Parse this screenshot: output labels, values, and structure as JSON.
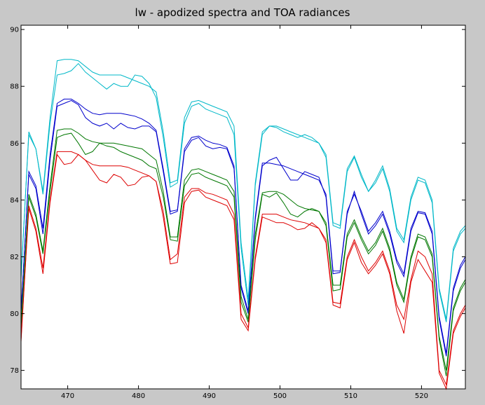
{
  "chart_data": {
    "type": "line",
    "title": "lw - apodized spectra and TOA radiances",
    "xlabel": "",
    "ylabel": "",
    "xlim": [
      463.4,
      526.2
    ],
    "ylim": [
      77.35,
      90.15
    ],
    "xticks": [
      470,
      480,
      490,
      500,
      510,
      520
    ],
    "yticks": [
      78,
      80,
      82,
      84,
      86,
      88,
      90
    ],
    "grid": false,
    "legend": "none",
    "x": [
      463.4,
      464.5,
      465.5,
      466.5,
      467.5,
      468.5,
      469.5,
      470.5,
      471.5,
      472.5,
      473.5,
      474.5,
      475.5,
      476.5,
      477.5,
      478.5,
      479.5,
      480.5,
      481.5,
      482.5,
      483.5,
      484.5,
      485.5,
      486.5,
      487.5,
      488.5,
      489.5,
      490.5,
      491.5,
      492.5,
      493.5,
      494.5,
      495.5,
      496.5,
      497.5,
      498.5,
      499.5,
      500.5,
      501.5,
      502.5,
      503.5,
      504.5,
      505.5,
      506.5,
      507.5,
      508.5,
      509.5,
      510.5,
      511.5,
      512.5,
      513.5,
      514.5,
      515.5,
      516.5,
      517.5,
      518.5,
      519.5,
      520.5,
      521.5,
      522.5,
      523.5,
      524.5,
      525.5,
      526.2
    ],
    "series": [
      {
        "color": "#00b8c8",
        "values": [
          81.2,
          86.4,
          85.8,
          84.3,
          86.9,
          88.9,
          88.95,
          88.95,
          88.9,
          88.7,
          88.5,
          88.4,
          88.4,
          88.4,
          88.4,
          88.3,
          88.2,
          88.1,
          88.0,
          87.8,
          86.4,
          84.6,
          84.7,
          86.9,
          87.45,
          87.5,
          87.4,
          87.3,
          87.2,
          87.1,
          86.6,
          82.5,
          80.5,
          84.6,
          86.4,
          86.6,
          86.6,
          86.5,
          86.4,
          86.3,
          86.2,
          86.1,
          86.0,
          85.6,
          83.2,
          83.1,
          85.1,
          85.55,
          84.9,
          84.3,
          84.7,
          85.2,
          84.4,
          83.0,
          82.6,
          84.1,
          84.8,
          84.7,
          84.0,
          80.9,
          79.8,
          82.3,
          82.9,
          83.1
        ]
      },
      {
        "color": "#00b8c8",
        "values": [
          81.3,
          86.3,
          85.8,
          84.2,
          86.7,
          88.4,
          88.45,
          88.55,
          88.8,
          88.5,
          88.3,
          88.1,
          87.9,
          88.1,
          88.0,
          88.0,
          88.4,
          88.35,
          88.1,
          87.6,
          86.2,
          84.45,
          84.6,
          86.7,
          87.3,
          87.4,
          87.2,
          87.1,
          87.0,
          86.9,
          86.3,
          82.3,
          80.3,
          84.5,
          86.3,
          86.6,
          86.55,
          86.4,
          86.3,
          86.2,
          86.3,
          86.2,
          86.0,
          85.5,
          83.1,
          83.0,
          85.0,
          85.5,
          84.8,
          84.3,
          84.6,
          85.1,
          84.3,
          82.9,
          82.5,
          84.0,
          84.7,
          84.6,
          83.9,
          80.8,
          79.7,
          82.2,
          82.8,
          83.0
        ]
      },
      {
        "color": "#0000cc",
        "values": [
          80.0,
          85.0,
          84.5,
          83.0,
          85.6,
          87.4,
          87.55,
          87.55,
          87.4,
          87.2,
          87.05,
          87.0,
          87.05,
          87.05,
          87.05,
          87.0,
          86.95,
          86.85,
          86.7,
          86.45,
          85.1,
          83.6,
          83.65,
          85.8,
          86.2,
          86.25,
          86.1,
          86.0,
          85.95,
          85.85,
          85.2,
          81.0,
          80.1,
          83.4,
          85.3,
          85.3,
          85.25,
          85.2,
          85.1,
          85.0,
          84.9,
          84.8,
          84.7,
          84.2,
          81.5,
          81.5,
          83.6,
          84.2,
          83.6,
          82.9,
          83.2,
          83.6,
          82.9,
          81.9,
          81.4,
          83.0,
          83.6,
          83.55,
          82.9,
          79.9,
          78.6,
          80.9,
          81.7,
          82.0
        ]
      },
      {
        "color": "#0000cc",
        "values": [
          80.1,
          84.9,
          84.4,
          82.8,
          85.4,
          87.3,
          87.4,
          87.5,
          87.35,
          86.9,
          86.7,
          86.6,
          86.7,
          86.5,
          86.7,
          86.55,
          86.5,
          86.6,
          86.6,
          86.4,
          85.0,
          83.5,
          83.6,
          85.7,
          86.1,
          86.2,
          85.9,
          85.8,
          85.85,
          85.8,
          85.1,
          80.9,
          80.0,
          83.3,
          85.2,
          85.4,
          85.5,
          85.1,
          84.7,
          84.7,
          85.0,
          84.9,
          84.8,
          84.1,
          81.4,
          81.45,
          83.5,
          84.3,
          83.5,
          82.8,
          83.1,
          83.5,
          82.8,
          81.8,
          81.3,
          82.9,
          83.55,
          83.5,
          82.8,
          79.8,
          78.5,
          80.8,
          81.6,
          81.9
        ]
      },
      {
        "color": "#007700",
        "values": [
          79.6,
          84.2,
          83.5,
          82.2,
          84.5,
          86.45,
          86.5,
          86.5,
          86.35,
          86.15,
          86.05,
          86.0,
          86.0,
          86.0,
          85.95,
          85.9,
          85.85,
          85.8,
          85.6,
          85.4,
          84.3,
          82.7,
          82.7,
          84.7,
          85.05,
          85.1,
          85.0,
          84.9,
          84.8,
          84.7,
          84.3,
          80.6,
          79.8,
          82.8,
          84.25,
          84.3,
          84.3,
          84.2,
          84.0,
          83.8,
          83.7,
          83.65,
          83.6,
          83.2,
          81.0,
          81.0,
          82.8,
          83.3,
          82.7,
          82.2,
          82.5,
          83.0,
          82.3,
          81.1,
          80.5,
          82.0,
          82.8,
          82.7,
          82.1,
          79.2,
          78.0,
          80.2,
          80.9,
          81.2
        ]
      },
      {
        "color": "#007700",
        "values": [
          79.5,
          84.1,
          83.4,
          82.1,
          84.3,
          86.2,
          86.3,
          86.35,
          86.0,
          85.6,
          85.7,
          86.0,
          85.9,
          85.85,
          85.7,
          85.6,
          85.5,
          85.4,
          85.2,
          85.1,
          84.1,
          82.6,
          82.55,
          84.5,
          84.9,
          84.95,
          84.8,
          84.7,
          84.6,
          84.5,
          84.1,
          80.4,
          79.7,
          82.6,
          84.2,
          84.1,
          84.25,
          83.9,
          83.5,
          83.4,
          83.6,
          83.7,
          83.6,
          83.1,
          80.8,
          80.85,
          82.7,
          83.2,
          82.6,
          82.1,
          82.4,
          82.9,
          82.2,
          81.0,
          80.4,
          81.9,
          82.7,
          82.6,
          82.0,
          79.1,
          77.8,
          80.1,
          80.8,
          81.1
        ]
      },
      {
        "color": "#dd0000",
        "values": [
          79.0,
          83.8,
          83.0,
          81.6,
          84.0,
          85.7,
          85.7,
          85.7,
          85.6,
          85.4,
          85.25,
          85.2,
          85.2,
          85.2,
          85.2,
          85.15,
          85.05,
          84.95,
          84.85,
          84.65,
          83.6,
          81.9,
          82.1,
          84.1,
          84.4,
          84.4,
          84.25,
          84.2,
          84.1,
          84.0,
          83.5,
          80.0,
          79.5,
          82.0,
          83.5,
          83.5,
          83.5,
          83.4,
          83.3,
          83.25,
          83.2,
          83.1,
          83.0,
          82.6,
          80.4,
          80.35,
          82.0,
          82.6,
          82.0,
          81.5,
          81.8,
          82.2,
          81.5,
          80.3,
          79.8,
          81.2,
          82.2,
          82.0,
          81.4,
          78.0,
          77.5,
          79.4,
          80.0,
          80.3
        ]
      },
      {
        "color": "#dd0000",
        "values": [
          79.1,
          83.7,
          82.9,
          81.4,
          83.9,
          85.6,
          85.25,
          85.3,
          85.6,
          85.4,
          85.05,
          84.7,
          84.6,
          84.9,
          84.8,
          84.5,
          84.55,
          84.8,
          84.85,
          84.65,
          83.4,
          81.75,
          81.8,
          83.9,
          84.3,
          84.35,
          84.1,
          84.0,
          83.9,
          83.8,
          83.3,
          79.8,
          79.4,
          81.9,
          83.4,
          83.3,
          83.2,
          83.2,
          83.1,
          82.95,
          83.0,
          83.2,
          83.0,
          82.5,
          80.3,
          80.2,
          81.9,
          82.5,
          81.8,
          81.4,
          81.7,
          82.1,
          81.4,
          80.1,
          79.3,
          81.1,
          81.9,
          81.5,
          81.1,
          77.9,
          77.35,
          79.3,
          79.9,
          80.2
        ]
      }
    ]
  }
}
